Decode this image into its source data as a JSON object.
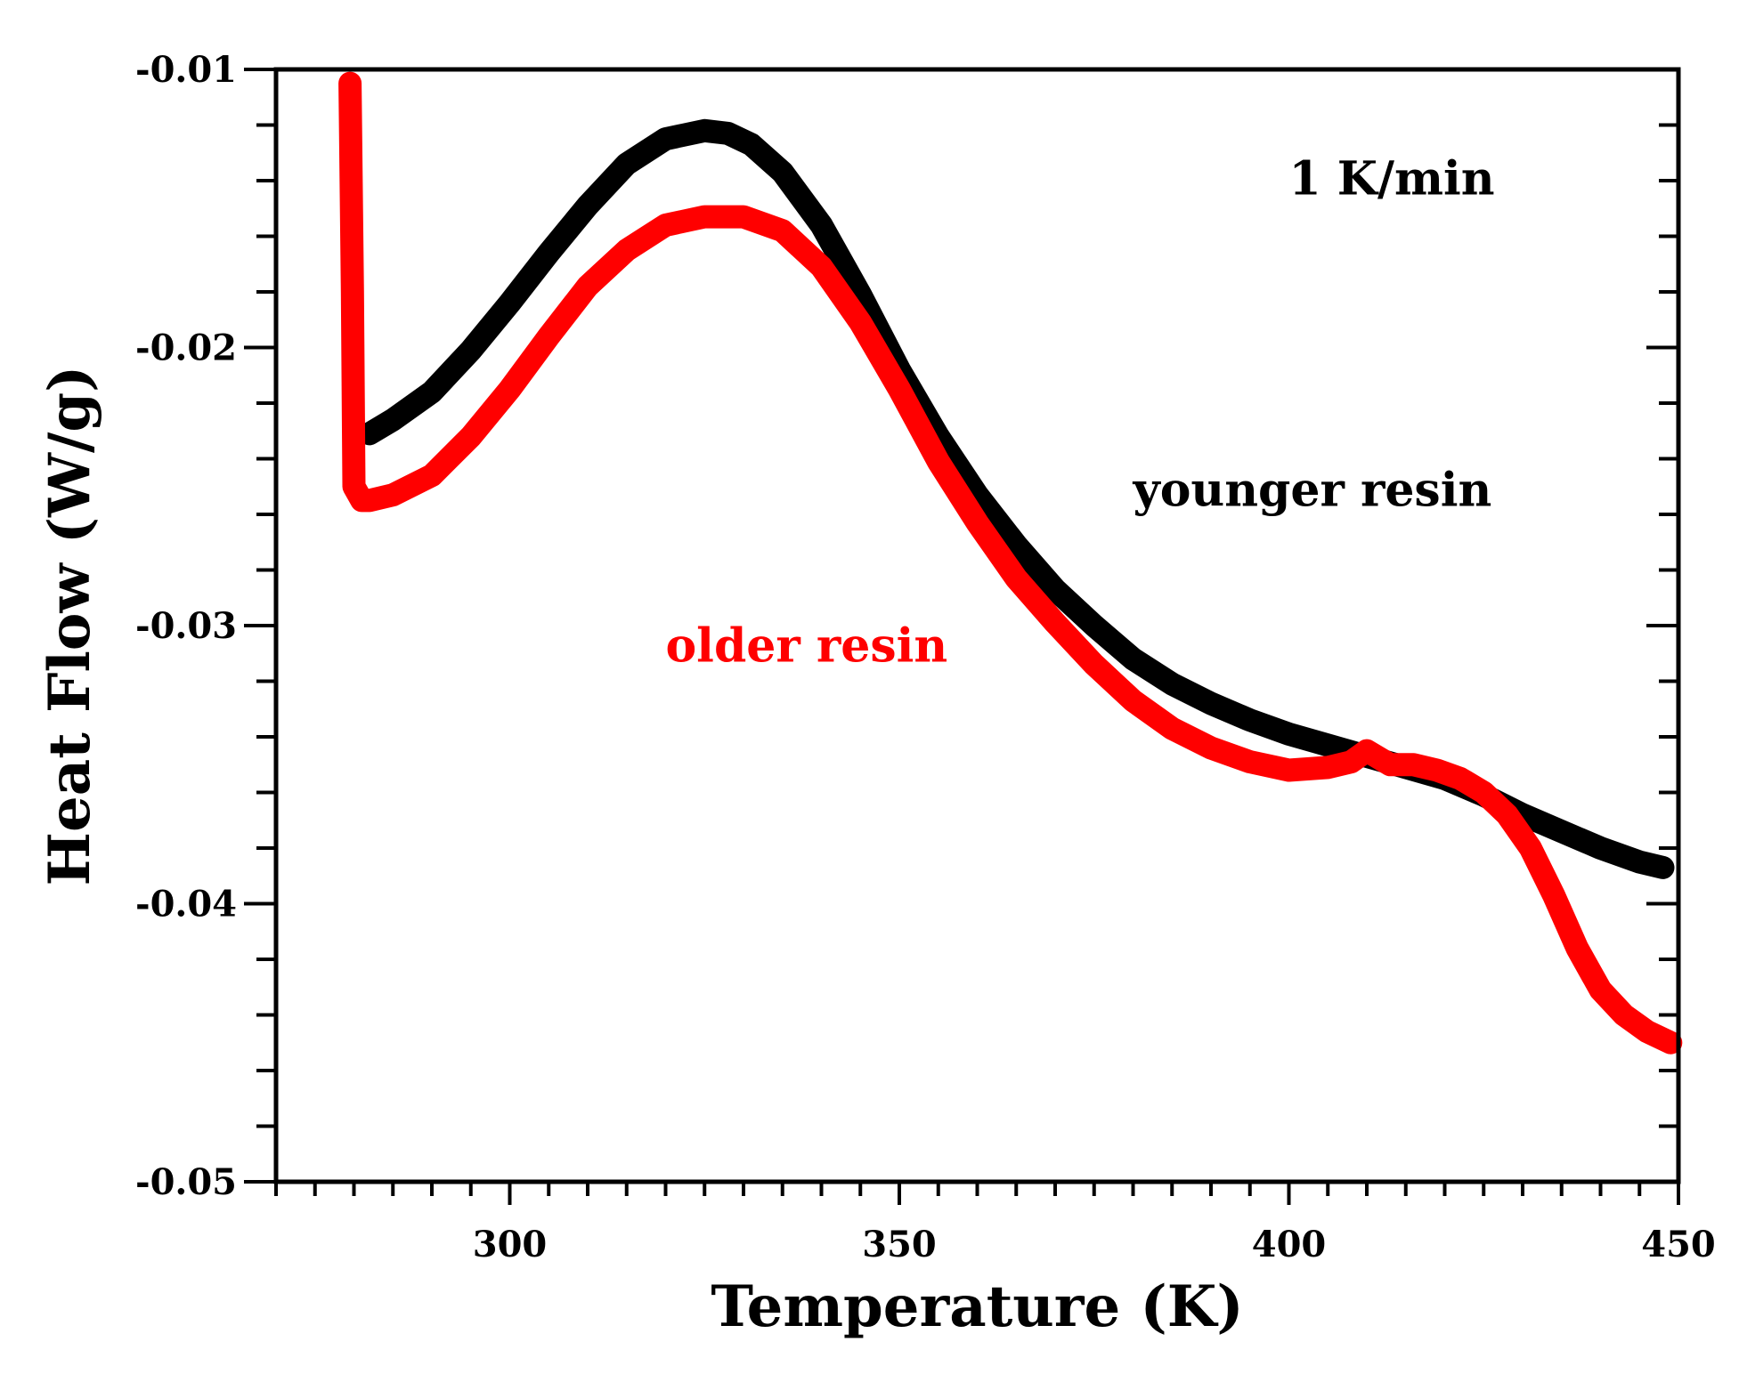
{
  "chart_data": {
    "type": "line",
    "title": "",
    "xlabel": "Temperature (K)",
    "ylabel": "Heat Flow (W/g)",
    "xlim": [
      270,
      450
    ],
    "ylim": [
      -0.05,
      -0.01
    ],
    "x_ticks": [
      300,
      350,
      400,
      450
    ],
    "x_tick_labels": [
      "300",
      "350",
      "400",
      "450"
    ],
    "y_ticks": [
      -0.05,
      -0.04,
      -0.03,
      -0.02,
      -0.01
    ],
    "y_tick_labels": [
      "-0.05",
      "-0.04",
      "-0.03",
      "-0.02",
      "-0.01"
    ],
    "x_minor_step": 5,
    "y_minor_step": 0.002,
    "grid": false,
    "annotations": [
      {
        "name": "rate-annotation",
        "text": "1 K/min",
        "x": 400,
        "y": -0.0145,
        "color": "#000000"
      },
      {
        "name": "younger-resin-label",
        "text": "younger resin",
        "x": 380,
        "y": -0.0257,
        "color": "#000000"
      },
      {
        "name": "older-resin-label",
        "text": "older resin",
        "x": 320,
        "y": -0.0313,
        "color": "#ff0000"
      }
    ],
    "series": [
      {
        "name": "younger resin",
        "color": "#000000",
        "x": [
          282,
          285,
          290,
          295,
          300,
          305,
          310,
          315,
          320,
          325,
          328,
          331,
          335,
          340,
          345,
          350,
          355,
          360,
          365,
          370,
          375,
          380,
          385,
          390,
          395,
          400,
          405,
          410,
          415,
          420,
          425,
          430,
          435,
          440,
          445,
          448
        ],
        "y": [
          -0.0231,
          -0.0226,
          -0.0216,
          -0.0201,
          -0.0184,
          -0.0166,
          -0.0149,
          -0.0134,
          -0.0125,
          -0.0122,
          -0.0123,
          -0.0127,
          -0.0137,
          -0.0156,
          -0.0181,
          -0.0208,
          -0.0232,
          -0.0253,
          -0.0271,
          -0.0287,
          -0.03,
          -0.0312,
          -0.0321,
          -0.0328,
          -0.0334,
          -0.0339,
          -0.0343,
          -0.0347,
          -0.0351,
          -0.0355,
          -0.0361,
          -0.0368,
          -0.0374,
          -0.038,
          -0.0385,
          -0.0387
        ]
      },
      {
        "name": "older resin",
        "color": "#ff0000",
        "x": [
          279.5,
          279.8,
          280,
          281,
          282,
          285,
          290,
          295,
          300,
          305,
          310,
          315,
          320,
          325,
          330,
          335,
          340,
          345,
          350,
          355,
          360,
          365,
          370,
          375,
          380,
          385,
          390,
          395,
          400,
          405,
          408,
          410,
          413,
          416,
          419,
          422,
          425,
          428,
          431,
          434,
          437,
          440,
          443,
          446,
          449
        ],
        "y": [
          -0.0105,
          -0.018,
          -0.025,
          -0.0255,
          -0.0255,
          -0.0253,
          -0.0246,
          -0.0232,
          -0.0215,
          -0.0196,
          -0.0178,
          -0.0165,
          -0.0156,
          -0.0153,
          -0.0153,
          -0.0158,
          -0.0171,
          -0.0191,
          -0.0215,
          -0.0241,
          -0.0263,
          -0.0283,
          -0.0299,
          -0.0314,
          -0.0327,
          -0.0337,
          -0.0344,
          -0.0349,
          -0.0352,
          -0.0351,
          -0.0349,
          -0.0345,
          -0.035,
          -0.035,
          -0.0352,
          -0.0355,
          -0.036,
          -0.0368,
          -0.038,
          -0.0397,
          -0.0416,
          -0.0431,
          -0.044,
          -0.0446,
          -0.045
        ]
      }
    ]
  }
}
